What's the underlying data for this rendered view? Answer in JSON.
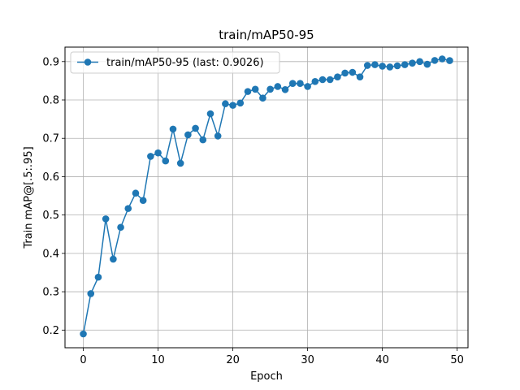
{
  "chart_data": {
    "type": "line",
    "title": "train/mAP50-95",
    "xlabel": "Epoch",
    "ylabel": "Train mAP@[.5:.95]",
    "xlim": [
      -2.45,
      51.45
    ],
    "ylim": [
      0.154,
      0.9377
    ],
    "xticks": [
      0,
      10,
      20,
      30,
      40,
      50
    ],
    "yticks": [
      0.2,
      0.3,
      0.4,
      0.5,
      0.6,
      0.7,
      0.8,
      0.9
    ],
    "grid": true,
    "legend_position": "top-left",
    "series": [
      {
        "name": "train/mAP50-95 (last: 0.9026)",
        "color": "#1f77b4",
        "marker": "circle",
        "x": [
          0,
          1,
          2,
          3,
          4,
          5,
          6,
          7,
          8,
          9,
          10,
          11,
          12,
          13,
          14,
          15,
          16,
          17,
          18,
          19,
          20,
          21,
          22,
          23,
          24,
          25,
          26,
          27,
          28,
          29,
          30,
          31,
          32,
          33,
          34,
          35,
          36,
          37,
          38,
          39,
          40,
          41,
          42,
          43,
          44,
          45,
          46,
          47,
          48,
          49
        ],
        "values": [
          0.19,
          0.295,
          0.338,
          0.49,
          0.385,
          0.468,
          0.517,
          0.557,
          0.538,
          0.653,
          0.662,
          0.641,
          0.724,
          0.635,
          0.709,
          0.726,
          0.696,
          0.764,
          0.706,
          0.79,
          0.786,
          0.792,
          0.822,
          0.828,
          0.805,
          0.828,
          0.835,
          0.827,
          0.843,
          0.843,
          0.835,
          0.848,
          0.853,
          0.853,
          0.86,
          0.87,
          0.872,
          0.86,
          0.89,
          0.892,
          0.888,
          0.886,
          0.889,
          0.892,
          0.896,
          0.9,
          0.893,
          0.903,
          0.907,
          0.9026
        ]
      }
    ]
  }
}
